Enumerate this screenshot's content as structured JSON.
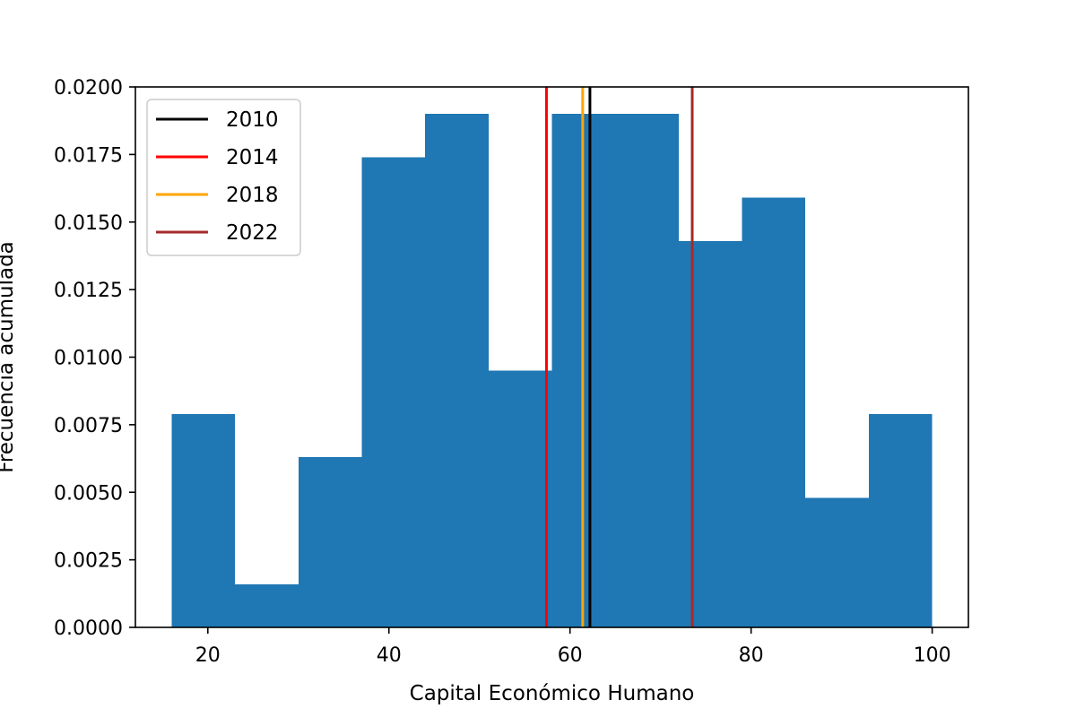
{
  "chart_data": {
    "type": "bar",
    "subtype": "histogram",
    "title": "",
    "xlabel": "Capital Económico Humano",
    "ylabel": "Frecuencia acumulada",
    "xlim": [
      12,
      104
    ],
    "ylim": [
      0,
      0.02
    ],
    "xticks": [
      20,
      40,
      60,
      80,
      100
    ],
    "yticks": [
      0.0,
      0.0025,
      0.005,
      0.0075,
      0.01,
      0.0125,
      0.015,
      0.0175,
      0.02
    ],
    "ytick_labels": [
      "0.0000",
      "0.0025",
      "0.0050",
      "0.0075",
      "0.0100",
      "0.0125",
      "0.0150",
      "0.0175",
      "0.0200"
    ],
    "xtick_labels": [
      "20",
      "40",
      "60",
      "80",
      "100"
    ],
    "bin_edges": [
      16.0,
      23.0,
      30.0,
      37.0,
      44.0,
      51.0,
      58.0,
      65.0,
      72.0,
      79.0,
      86.0,
      93.0,
      100.0
    ],
    "values": [
      0.0079,
      0.0016,
      0.0063,
      0.0174,
      0.019,
      0.0095,
      0.019,
      0.019,
      0.0143,
      0.0159,
      0.0048,
      0.0079
    ],
    "bar_color": "#1f77b4",
    "series": [
      {
        "name": "2010",
        "x": 62.2,
        "color": "#000000"
      },
      {
        "name": "2014",
        "x": 57.4,
        "color": "#ff0000"
      },
      {
        "name": "2018",
        "x": 61.4,
        "color": "#ffa500"
      },
      {
        "name": "2022",
        "x": 73.5,
        "color": "#a52a2a"
      }
    ],
    "legend_position": "top-left",
    "grid": false
  }
}
